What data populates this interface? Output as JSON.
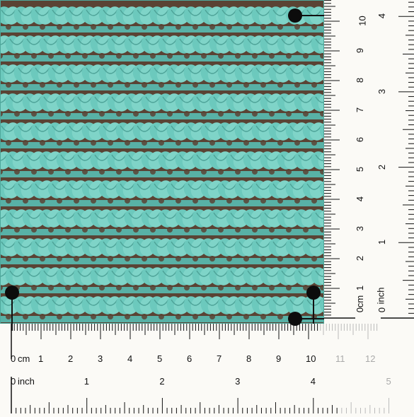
{
  "photo": {
    "subject": "crochet-swatch",
    "yarn_color": "#6cc9bd",
    "gap_color": "#5a4334"
  },
  "ruler_bottom": {
    "cm_unit": "cm",
    "inch_unit": "inch",
    "cm_labels": [
      "0",
      "1",
      "2",
      "3",
      "4",
      "5",
      "6",
      "7",
      "8",
      "9",
      "10",
      "11",
      "12"
    ],
    "inch_labels": [
      "0",
      "1",
      "2",
      "3",
      "4",
      "5"
    ]
  },
  "ruler_right": {
    "cm_unit": "cm",
    "inch_unit": "inch",
    "cm_labels": [
      "0",
      "1",
      "2",
      "3",
      "4",
      "5",
      "6",
      "7",
      "8",
      "9",
      "10"
    ],
    "inch_labels": [
      "0",
      "1",
      "2",
      "3",
      "4"
    ]
  },
  "markers": [
    {
      "name": "corner-marker-top-right"
    },
    {
      "name": "corner-marker-bottom-left"
    },
    {
      "name": "corner-marker-bottom-right"
    },
    {
      "name": "corner-marker-bottom-right-2"
    }
  ]
}
